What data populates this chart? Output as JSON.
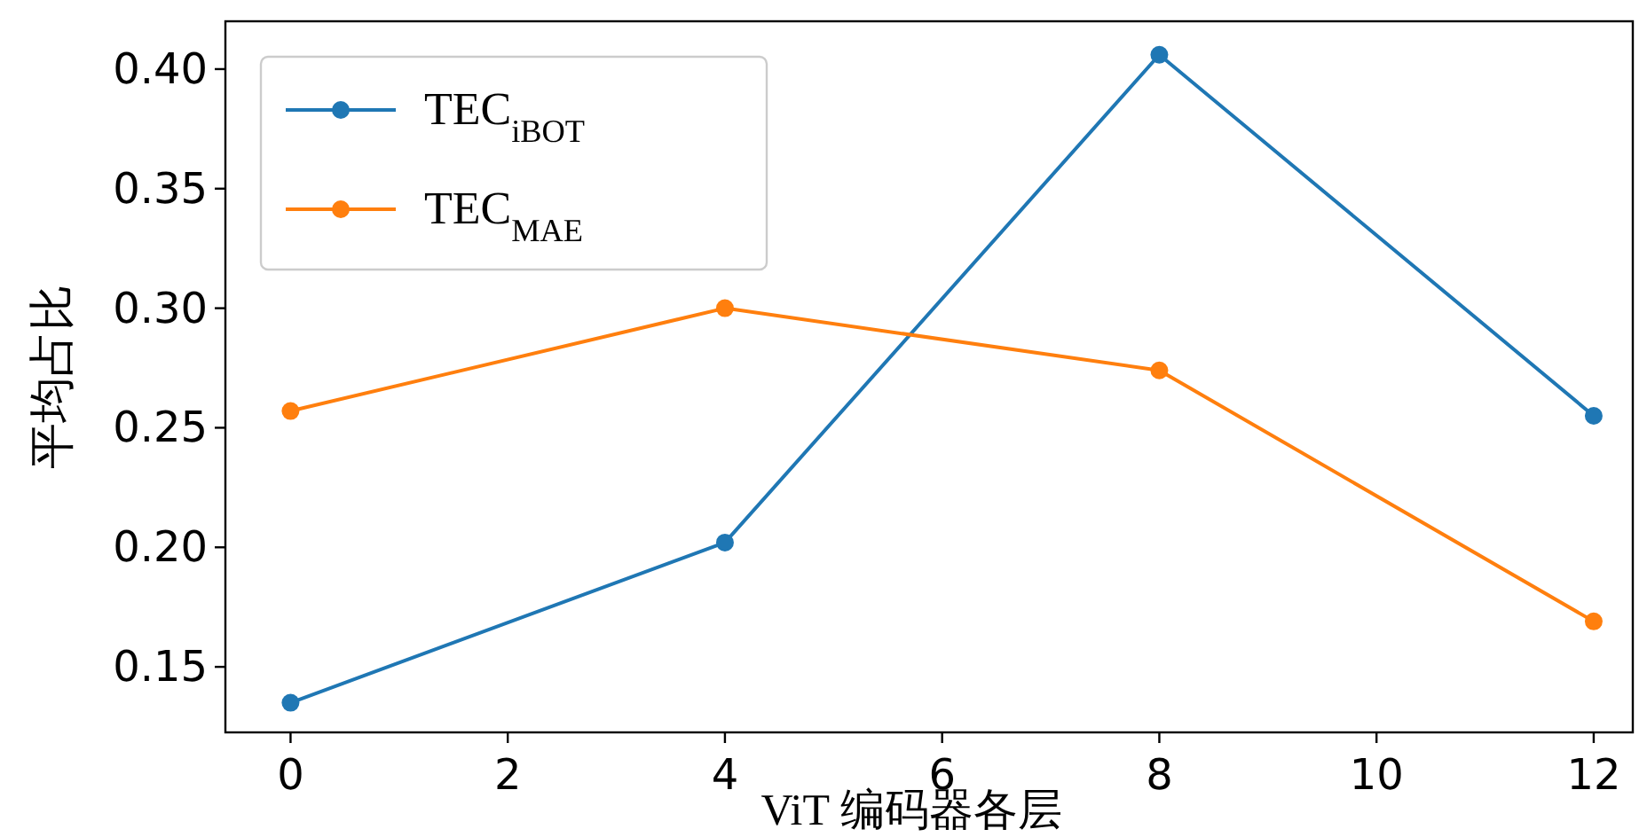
{
  "chart_data": {
    "type": "line",
    "xlabel": "ViT 编码器各层",
    "ylabel": "平均占比",
    "x": [
      0,
      4,
      8,
      12
    ],
    "series": [
      {
        "name": "TEC$_{iBOT}$",
        "color": "#1f77b4",
        "values": [
          0.135,
          0.202,
          0.406,
          0.255
        ]
      },
      {
        "name": "TEC$_{MAE}$",
        "color": "#ff7f0e",
        "values": [
          0.257,
          0.3,
          0.274,
          0.169
        ]
      }
    ],
    "xlim": [
      -0.6,
      12.36
    ],
    "ylim": [
      0.1226,
      0.42
    ],
    "xticks": [
      0,
      2,
      4,
      6,
      8,
      10,
      12
    ],
    "yticks": [
      0.15,
      {
        "value": 0.2,
        "label": "0.20"
      },
      0.25,
      {
        "value": 0.3,
        "label": "0.30"
      },
      0.35,
      {
        "value": 0.4,
        "label": "0.40"
      }
    ],
    "marker": "circle",
    "line_style": "solid",
    "legend": "top left",
    "grid": false
  }
}
